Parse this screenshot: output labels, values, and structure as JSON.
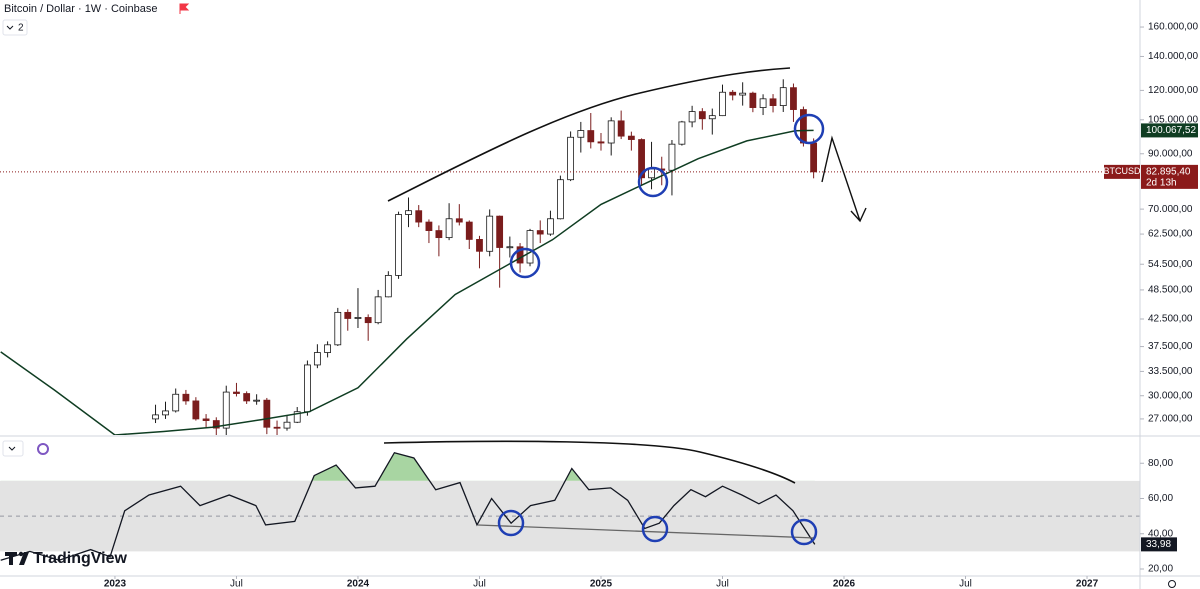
{
  "header": {
    "title": "Bitcoin / Dollar · 1W · Coinbase",
    "indicator_count": "2",
    "logo": "TradingView"
  },
  "chart_data": [
    {
      "type": "candlestick",
      "log_scale": true,
      "grid": false,
      "up_color": "#ffffff",
      "up_border": "#1a1a1a",
      "down_color": "#7a1c1c",
      "x": [
        2023.167,
        2023.208,
        2023.25,
        2023.292,
        2023.333,
        2023.375,
        2023.417,
        2023.458,
        2023.5,
        2023.542,
        2023.583,
        2023.625,
        2023.667,
        2023.708,
        2023.75,
        2023.792,
        2023.833,
        2023.875,
        2023.917,
        2023.958,
        2024,
        2024.042,
        2024.083,
        2024.125,
        2024.167,
        2024.208,
        2024.25,
        2024.292,
        2024.333,
        2024.375,
        2024.417,
        2024.458,
        2024.5,
        2024.542,
        2024.583,
        2024.625,
        2024.667,
        2024.708,
        2024.75,
        2024.792,
        2024.833,
        2024.875,
        2024.917,
        2024.958,
        2025,
        2025.042,
        2025.083,
        2025.125,
        2025.167,
        2025.208,
        2025.25,
        2025.292,
        2025.333,
        2025.375,
        2025.417,
        2025.458,
        2025.5,
        2025.542,
        2025.583,
        2025.625,
        2025.667,
        2025.708,
        2025.75,
        2025.792,
        2025.833,
        2025.875
      ],
      "open": [
        27000,
        27500,
        28000,
        30200,
        29300,
        27000,
        26800,
        25900,
        30500,
        30300,
        29300,
        29400,
        26000,
        25900,
        26600,
        27900,
        34500,
        36500,
        37800,
        43800,
        42600,
        42800,
        41800,
        47000,
        51800,
        68300,
        69500,
        66000,
        63500,
        61500,
        67000,
        66000,
        61000,
        57800,
        67800,
        58800,
        59000,
        54800,
        63500,
        62500,
        67000,
        80000,
        97000,
        100000,
        95000,
        94500,
        104500,
        97500,
        96000,
        80700,
        84000,
        83500,
        94000,
        104000,
        109000,
        105500,
        107000,
        119000,
        117500,
        118500,
        111000,
        115500,
        112000,
        121500,
        110000,
        94500
      ],
      "high": [
        28800,
        29200,
        31000,
        30800,
        29800,
        27600,
        27200,
        31400,
        31800,
        30600,
        30200,
        29700,
        26800,
        27400,
        28500,
        35200,
        37900,
        38400,
        44700,
        44400,
        48900,
        43400,
        48500,
        52800,
        69200,
        73800,
        71300,
        66800,
        65000,
        71900,
        71600,
        66500,
        62000,
        69900,
        68000,
        61800,
        60000,
        64000,
        66500,
        69500,
        81500,
        99600,
        104000,
        108300,
        98900,
        106200,
        109500,
        99500,
        96500,
        95000,
        88800,
        95800,
        104500,
        111900,
        110700,
        110500,
        123200,
        120200,
        124500,
        119300,
        117900,
        118000,
        126200,
        123800,
        111500,
        96500
      ],
      "low": [
        26500,
        27000,
        27800,
        28800,
        26800,
        26000,
        24800,
        25100,
        29900,
        28900,
        28800,
        25200,
        25000,
        25600,
        26500,
        27400,
        34000,
        35700,
        37600,
        40300,
        40800,
        38500,
        41500,
        46900,
        51000,
        64500,
        64500,
        60000,
        56500,
        60800,
        65000,
        58400,
        53500,
        56500,
        49000,
        56200,
        52500,
        54000,
        60000,
        62000,
        66800,
        79500,
        90500,
        92200,
        91300,
        89300,
        96200,
        91300,
        78200,
        76600,
        78000,
        74500,
        93400,
        101500,
        100400,
        98200,
        106800,
        114700,
        112000,
        108700,
        107300,
        108600,
        108800,
        104000,
        93000,
        80500
      ],
      "close": [
        27500,
        28000,
        30200,
        29300,
        27000,
        26800,
        25900,
        30500,
        30300,
        29300,
        29400,
        26000,
        25900,
        26600,
        27900,
        34500,
        36500,
        37800,
        43800,
        42600,
        42800,
        41800,
        47000,
        51800,
        68300,
        69500,
        66000,
        63500,
        61500,
        67000,
        66000,
        61000,
        57800,
        67800,
        58800,
        59000,
        54800,
        63500,
        62500,
        67000,
        80000,
        97000,
        100000,
        95000,
        94500,
        104500,
        97500,
        96000,
        80700,
        84000,
        83500,
        94000,
        104000,
        109000,
        105500,
        107000,
        119000,
        117500,
        118500,
        111000,
        115500,
        112000,
        121500,
        110000,
        94500,
        82895.4
      ],
      "symbol": "BTCUSD",
      "last_price_label": "82.895,40",
      "countdown": "2d 13h",
      "price_line_color": "#8b1a1a",
      "ma": {
        "color": "#0f3d22",
        "x": [
          2022.53,
          2022.75,
          2023.0,
          2023.2,
          2023.4,
          2023.6,
          2023.8,
          2024.0,
          2024.2,
          2024.4,
          2024.6,
          2024.8,
          2025.0,
          2025.2,
          2025.4,
          2025.6,
          2025.8,
          2025.875
        ],
        "values": [
          36600,
          30800,
          25100,
          25500,
          26000,
          26900,
          27900,
          31100,
          38800,
          47500,
          53800,
          60900,
          71500,
          79400,
          88000,
          95400,
          99900,
          100067.52
        ],
        "last_value_label": "100.067,52"
      },
      "xlim": [
        2022.527,
        2027.218
      ],
      "ylim": [
        25100,
        180900
      ],
      "yticks": [
        {
          "value": 160000,
          "label": "160.000,00"
        },
        {
          "value": 140000,
          "label": "140.000,00"
        },
        {
          "value": 120000,
          "label": "120.000,00"
        },
        {
          "value": 105000,
          "label": "105.000,00"
        },
        {
          "value": 90000,
          "label": "90.000,00"
        },
        {
          "value": 70000,
          "label": "70.000,00"
        },
        {
          "value": 62500,
          "label": "62.500,00"
        },
        {
          "value": 54500,
          "label": "54.500,00"
        },
        {
          "value": 48500,
          "label": "48.500,00"
        },
        {
          "value": 42500,
          "label": "42.500,00"
        },
        {
          "value": 37500,
          "label": "37.500,00"
        },
        {
          "value": 33500,
          "label": "33.500,00"
        },
        {
          "value": 30000,
          "label": "30.000,00"
        },
        {
          "value": 27000,
          "label": "27.000,00"
        }
      ]
    },
    {
      "type": "line",
      "grid": false,
      "color": "#131722",
      "band": [
        30,
        70
      ],
      "band_color": "#e3e3e3",
      "midline": 50,
      "overbought_fill": "#a8d5a2",
      "x": [
        2022.53,
        2022.65,
        2022.77,
        2022.9,
        2022.98,
        2023.04,
        2023.14,
        2023.27,
        2023.35,
        2023.47,
        2023.58,
        2023.62,
        2023.74,
        2023.82,
        2023.91,
        2023.99,
        2024.07,
        2024.15,
        2024.23,
        2024.32,
        2024.42,
        2024.49,
        2024.55,
        2024.63,
        2024.71,
        2024.81,
        2024.88,
        2024.95,
        2025.04,
        2025.11,
        2025.18,
        2025.24,
        2025.3,
        2025.37,
        2025.43,
        2025.5,
        2025.58,
        2025.65,
        2025.72,
        2025.79,
        2025.88
      ],
      "values": [
        25,
        30,
        25,
        31,
        27,
        53,
        62,
        67,
        56,
        62,
        56,
        45,
        47,
        73,
        79,
        66,
        67,
        86,
        83,
        65,
        69,
        45,
        60,
        46,
        56,
        59,
        77,
        65,
        66,
        59,
        43,
        46,
        56,
        65,
        61,
        67,
        62,
        57,
        62,
        53,
        33.98
      ],
      "last_value_label": "33,98",
      "xlim": [
        2022.527,
        2027.218
      ],
      "ylim": [
        16.6,
        94.9
      ],
      "yticks": [
        {
          "value": 80,
          "label": "80,00"
        },
        {
          "value": 60,
          "label": "60,00"
        },
        {
          "value": 40,
          "label": "40,00"
        },
        {
          "value": 20,
          "label": "20,00"
        }
      ],
      "xticks": [
        {
          "value": 2023,
          "label": "2023"
        },
        {
          "value": 2023.5,
          "label": "Jul"
        },
        {
          "value": 2024,
          "label": "2024"
        },
        {
          "value": 2024.5,
          "label": "Jul"
        },
        {
          "value": 2025,
          "label": "2025"
        },
        {
          "value": 2025.5,
          "label": "Jul"
        },
        {
          "value": 2026,
          "label": "2026"
        },
        {
          "value": 2026.5,
          "label": "Jul"
        },
        {
          "value": 2027,
          "label": "2027"
        }
      ]
    }
  ]
}
